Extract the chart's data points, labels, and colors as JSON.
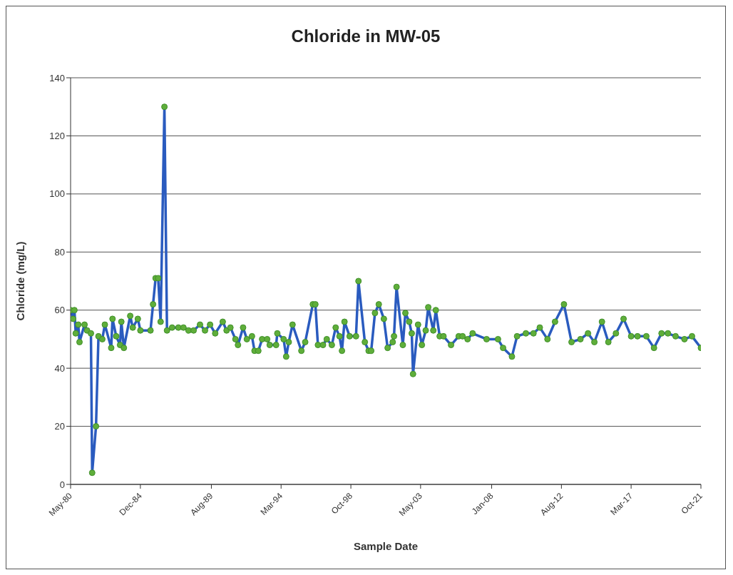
{
  "chart_data": {
    "type": "line",
    "title": "Chloride in MW-05",
    "xlabel": "Sample Date",
    "ylabel": "Chloride (mg/L)",
    "x": [
      "1980-05",
      "1980-07",
      "1980-08",
      "1980-09",
      "1980-11",
      "1980-12",
      "1981-04",
      "1981-06",
      "1981-09",
      "1981-10",
      "1982-01",
      "1982-03",
      "1982-06",
      "1982-08",
      "1983-01",
      "1983-02",
      "1983-05",
      "1983-08",
      "1983-09",
      "1983-11",
      "1984-04",
      "1984-06",
      "1984-10",
      "1984-12",
      "1985-08",
      "1985-10",
      "1985-12",
      "1986-02",
      "1986-04",
      "1986-07",
      "1986-09",
      "1987-01",
      "1987-06",
      "1987-10",
      "1988-02",
      "1988-06",
      "1988-11",
      "1989-03",
      "1989-07",
      "1989-11",
      "1990-05",
      "1990-08",
      "1990-11",
      "1991-03",
      "1991-05",
      "1991-09",
      "1991-12",
      "1992-04",
      "1992-06",
      "1992-09",
      "1992-12",
      "1993-04",
      "1993-06",
      "1993-11",
      "1993-12",
      "1994-05",
      "1994-07",
      "1994-09",
      "1994-12",
      "1995-07",
      "1995-10",
      "1996-04",
      "1996-06",
      "1996-08",
      "1996-12",
      "1997-03",
      "1997-07",
      "1997-10",
      "1998-01",
      "1998-03",
      "1998-05",
      "1998-09",
      "1999-02",
      "1999-04",
      "1999-09",
      "1999-12",
      "2000-02",
      "2000-05",
      "2000-08",
      "2000-12",
      "2001-03",
      "2001-07",
      "2001-08",
      "2001-10",
      "2002-03",
      "2002-05",
      "2002-08",
      "2002-10",
      "2002-11",
      "2003-03",
      "2003-06",
      "2003-09",
      "2003-11",
      "2004-03",
      "2004-05",
      "2004-08",
      "2004-11",
      "2005-05",
      "2005-11",
      "2006-02",
      "2006-06",
      "2006-10",
      "2007-09",
      "2008-06",
      "2008-10",
      "2009-05",
      "2009-09",
      "2010-04",
      "2010-10",
      "2011-03",
      "2011-09",
      "2012-03",
      "2012-10",
      "2013-04",
      "2013-11",
      "2014-05",
      "2014-10",
      "2015-04",
      "2015-09",
      "2016-03",
      "2016-09",
      "2017-03",
      "2017-08",
      "2018-03",
      "2018-09",
      "2019-03",
      "2019-08",
      "2020-02",
      "2020-09",
      "2021-03",
      "2021-10"
    ],
    "series": [
      {
        "color": "#2a5bbf",
        "values": [
          60,
          57,
          60,
          52,
          55,
          49,
          55,
          53,
          52,
          4,
          20,
          51,
          50,
          55,
          47,
          57,
          51,
          48,
          56,
          47,
          58,
          54,
          57,
          53,
          53,
          62,
          71,
          71,
          56,
          130,
          53,
          54,
          54,
          54,
          53,
          53,
          55,
          53,
          55,
          52,
          56,
          53,
          54,
          50,
          48,
          54,
          50,
          51,
          46,
          46,
          50,
          50,
          48,
          48,
          52,
          50,
          44,
          49,
          55,
          46,
          49,
          62,
          62,
          48,
          48,
          50,
          48,
          54,
          51,
          46,
          56,
          51,
          51,
          70,
          49,
          46,
          46,
          59,
          62,
          57,
          47,
          49,
          51,
          68,
          48,
          59,
          56,
          52,
          38,
          55,
          48,
          53,
          61,
          53,
          60,
          51,
          51,
          48,
          51,
          51,
          50,
          52,
          50,
          50,
          47,
          44,
          51,
          52,
          52,
          54,
          50,
          56,
          62,
          49,
          50,
          52,
          49,
          56,
          49,
          52,
          57,
          51,
          51,
          51,
          47,
          52,
          52,
          51,
          50,
          51,
          47
        ]
      }
    ],
    "xlim": [
      "1980-05",
      "2021-10"
    ],
    "xticks": [
      {
        "value": "1980-05",
        "label": "May-80"
      },
      {
        "value": "1984-12",
        "label": "Dec-84"
      },
      {
        "value": "1989-08",
        "label": "Aug-89"
      },
      {
        "value": "1994-03",
        "label": "Mar-94"
      },
      {
        "value": "1998-10",
        "label": "Oct-98"
      },
      {
        "value": "2003-05",
        "label": "May-03"
      },
      {
        "value": "2008-01",
        "label": "Jan-08"
      },
      {
        "value": "2012-08",
        "label": "Aug-12"
      },
      {
        "value": "2017-03",
        "label": "Mar-17"
      },
      {
        "value": "2021-10",
        "label": "Oct-21"
      }
    ],
    "ylim": [
      0,
      140
    ],
    "yticks": [
      0,
      20,
      40,
      60,
      80,
      100,
      120,
      140
    ],
    "grid": "y",
    "marker": "circle",
    "line_style": "solid"
  }
}
